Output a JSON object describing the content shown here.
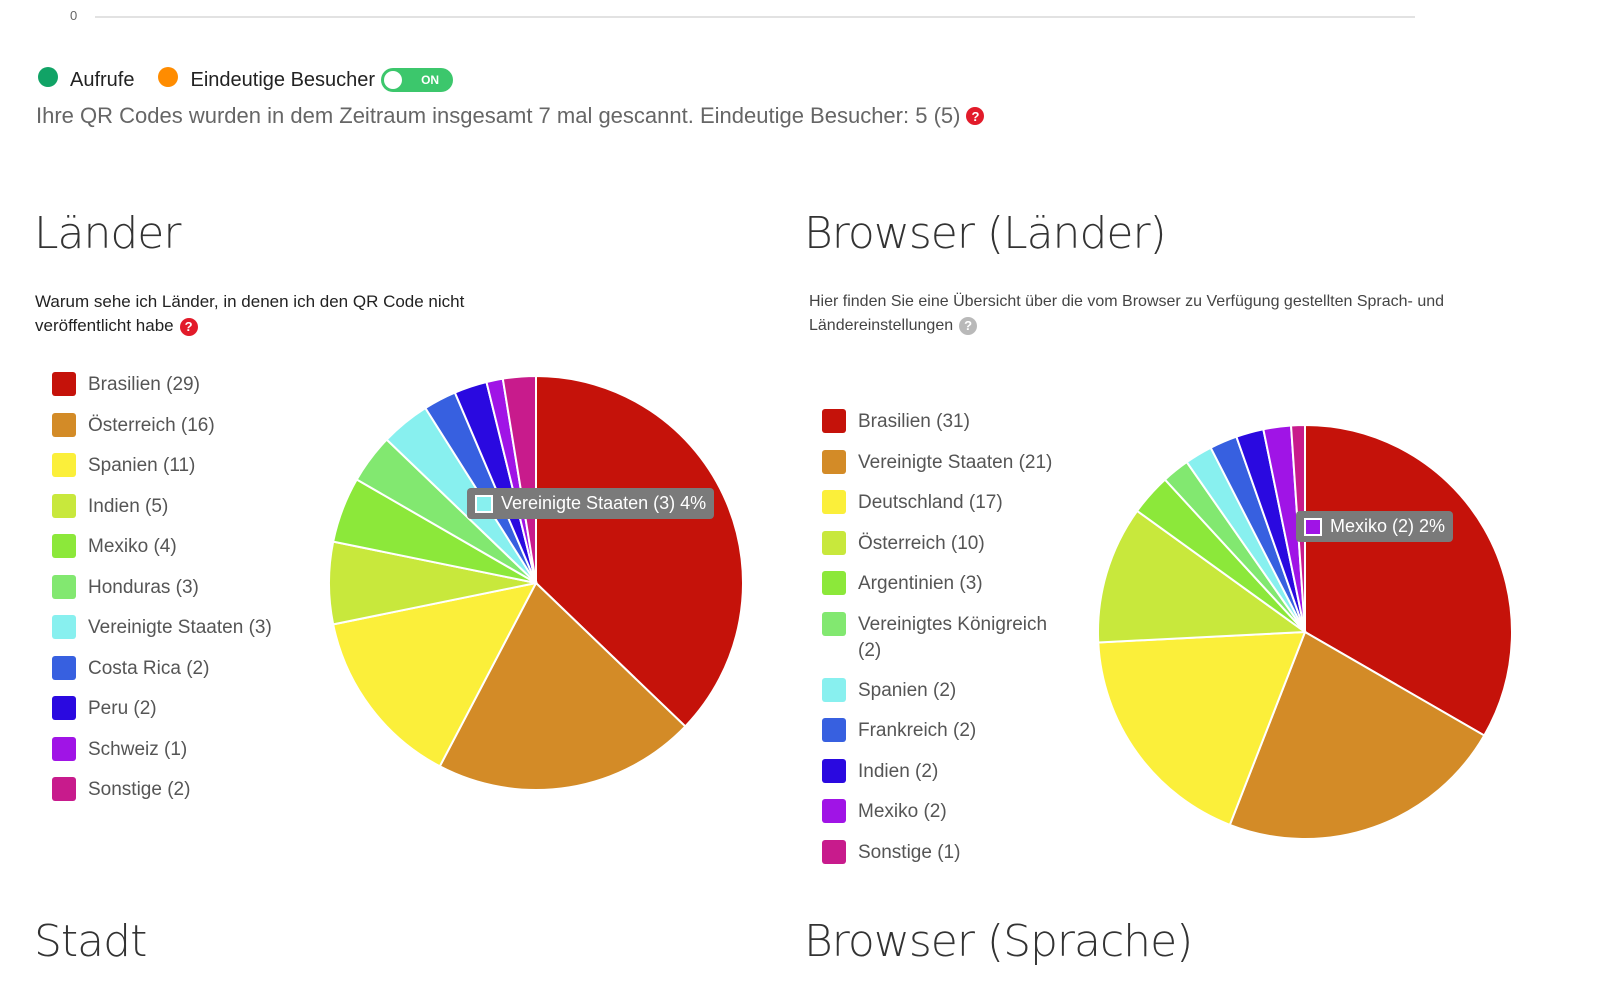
{
  "timeline": {
    "axis_zero_label": "0",
    "legend": [
      {
        "label": "Aufrufe",
        "color": "#11a366"
      },
      {
        "label": "Eindeutige Besucher",
        "color": "#ff8c00"
      }
    ],
    "toggle_label": "ON",
    "summary_text": "Ihre QR Codes wurden in dem Zeitraum insgesamt 7 mal gescannt. Eindeutige Besucher: 5 (5)",
    "help_icon": "?"
  },
  "sections": {
    "laender": {
      "title": "Länder",
      "note": "Warum sehe ich Länder, in denen ich den QR Code nicht veröffentlicht habe",
      "tooltip": {
        "label": "Vereinigte Staaten (3) 4%",
        "color": "#88f0ef"
      }
    },
    "browser_laender": {
      "title": "Browser (Länder)",
      "note": "Hier finden Sie eine Übersicht über die vom Browser zu Verfügung gestellten Sprach- und Ländereinstellungen",
      "tooltip": {
        "label": "Mexiko (2) 2%",
        "color": "#a014e6"
      }
    },
    "stadt": {
      "title": "Stadt"
    },
    "browser_sprache": {
      "title": "Browser (Sprache)"
    }
  },
  "chart_data": [
    {
      "type": "pie",
      "title": "Länder",
      "categories": [
        "Brasilien",
        "Österreich",
        "Spanien",
        "Indien",
        "Mexiko",
        "Honduras",
        "Vereinigte Staaten",
        "Costa Rica",
        "Peru",
        "Schweiz",
        "Sonstige"
      ],
      "values": [
        29,
        16,
        11,
        5,
        4,
        3,
        3,
        2,
        2,
        1,
        2
      ],
      "labels": [
        "Brasilien (29)",
        "Österreich (16)",
        "Spanien (11)",
        "Indien (5)",
        "Mexiko (4)",
        "Honduras (3)",
        "Vereinigte Staaten (3)",
        "Costa Rica (2)",
        "Peru (2)",
        "Schweiz (1)",
        "Sonstige (2)"
      ],
      "colors": [
        "#c5120a",
        "#d38b27",
        "#fbef3a",
        "#c8e83c",
        "#8ce83a",
        "#82e870",
        "#88f0ef",
        "#3760e0",
        "#2a09e0",
        "#a014e6",
        "#c81b8c"
      ],
      "legend_position": "left"
    },
    {
      "type": "pie",
      "title": "Browser (Länder)",
      "categories": [
        "Brasilien",
        "Vereinigte Staaten",
        "Deutschland",
        "Österreich",
        "Argentinien",
        "Vereinigtes Königreich",
        "Spanien",
        "Frankreich",
        "Indien",
        "Mexiko",
        "Sonstige"
      ],
      "values": [
        31,
        21,
        17,
        10,
        3,
        2,
        2,
        2,
        2,
        2,
        1
      ],
      "labels": [
        "Brasilien (31)",
        "Vereinigte Staaten (21)",
        "Deutschland (17)",
        "Österreich (10)",
        "Argentinien (3)",
        "Vereinigtes Königreich (2)",
        "Spanien (2)",
        "Frankreich (2)",
        "Indien (2)",
        "Mexiko (2)",
        "Sonstige (1)"
      ],
      "colors": [
        "#c5120a",
        "#d38b27",
        "#fbef3a",
        "#c8e83c",
        "#8ce83a",
        "#82e870",
        "#88f0ef",
        "#3760e0",
        "#2a09e0",
        "#a014e6",
        "#c81b8c"
      ],
      "legend_position": "left"
    }
  ]
}
